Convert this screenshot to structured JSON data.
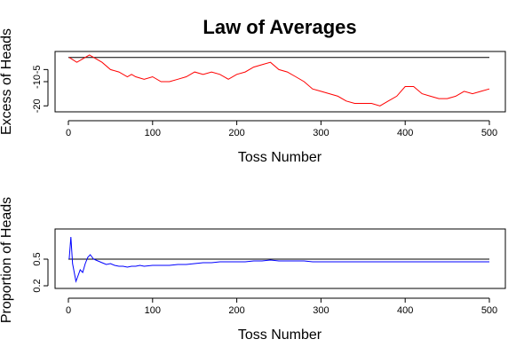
{
  "title": "Law of Averages",
  "chart_data": [
    {
      "type": "line",
      "xlabel": "Toss Number",
      "ylabel": "Excess of Heads",
      "xlim": [
        0,
        500
      ],
      "ylim": [
        -21,
        1
      ],
      "xticks": [
        0,
        100,
        200,
        300,
        400,
        500
      ],
      "xtick_labels": [
        "0",
        "100",
        "200",
        "300",
        "400",
        "500"
      ],
      "yticks": [
        -20,
        -10,
        -5
      ],
      "ytick_labels": [
        "-20",
        "-10",
        "-5"
      ],
      "reference_line": 0,
      "grid": false,
      "color": "#ff0000",
      "series": [
        {
          "x": [
            1,
            10,
            20,
            25,
            30,
            40,
            50,
            60,
            70,
            75,
            80,
            90,
            100,
            110,
            120,
            130,
            140,
            150,
            160,
            170,
            180,
            190,
            200,
            210,
            220,
            230,
            240,
            250,
            260,
            270,
            280,
            290,
            300,
            310,
            320,
            330,
            340,
            350,
            360,
            370,
            380,
            390,
            400,
            410,
            420,
            430,
            440,
            450,
            460,
            470,
            480,
            490,
            500
          ],
          "y": [
            0,
            -2,
            0,
            1,
            0,
            -2,
            -5,
            -6,
            -8,
            -7,
            -8,
            -9,
            -8,
            -10,
            -10,
            -9,
            -8,
            -6,
            -7,
            -6,
            -7,
            -9,
            -7,
            -6,
            -4,
            -3,
            -2,
            -5,
            -6,
            -8,
            -10,
            -13,
            -14,
            -15,
            -16,
            -18,
            -19,
            -19,
            -19,
            -20,
            -18,
            -16,
            -12,
            -12,
            -15,
            -16,
            -17,
            -17,
            -16,
            -14,
            -15,
            -14,
            -13
          ]
        }
      ]
    },
    {
      "type": "line",
      "xlabel": "Toss Number",
      "ylabel": "Proportion of Heads",
      "xlim": [
        0,
        500
      ],
      "ylim": [
        0.2,
        0.8
      ],
      "xticks": [
        0,
        100,
        200,
        300,
        400,
        500
      ],
      "xtick_labels": [
        "0",
        "100",
        "200",
        "300",
        "400",
        "500"
      ],
      "yticks": [
        0.2,
        0.5
      ],
      "ytick_labels": [
        "0.2",
        "0.5"
      ],
      "reference_line": 0.5,
      "grid": false,
      "color": "#0000ff",
      "series": [
        {
          "x": [
            1,
            3,
            5,
            7,
            9,
            11,
            14,
            17,
            20,
            23,
            26,
            30,
            35,
            40,
            45,
            50,
            55,
            60,
            65,
            70,
            75,
            80,
            85,
            90,
            100,
            110,
            120,
            130,
            140,
            150,
            160,
            170,
            180,
            190,
            200,
            210,
            220,
            230,
            240,
            250,
            260,
            270,
            280,
            290,
            300,
            320,
            340,
            360,
            380,
            400,
            420,
            440,
            460,
            480,
            500
          ],
          "y": [
            0.5,
            0.75,
            0.45,
            0.35,
            0.25,
            0.3,
            0.38,
            0.35,
            0.45,
            0.52,
            0.55,
            0.5,
            0.48,
            0.46,
            0.44,
            0.45,
            0.43,
            0.42,
            0.42,
            0.41,
            0.42,
            0.42,
            0.43,
            0.42,
            0.43,
            0.43,
            0.43,
            0.44,
            0.44,
            0.45,
            0.46,
            0.46,
            0.47,
            0.47,
            0.47,
            0.47,
            0.48,
            0.48,
            0.49,
            0.48,
            0.48,
            0.48,
            0.48,
            0.47,
            0.47,
            0.47,
            0.47,
            0.47,
            0.47,
            0.47,
            0.47,
            0.47,
            0.47,
            0.47,
            0.47
          ]
        }
      ]
    }
  ]
}
